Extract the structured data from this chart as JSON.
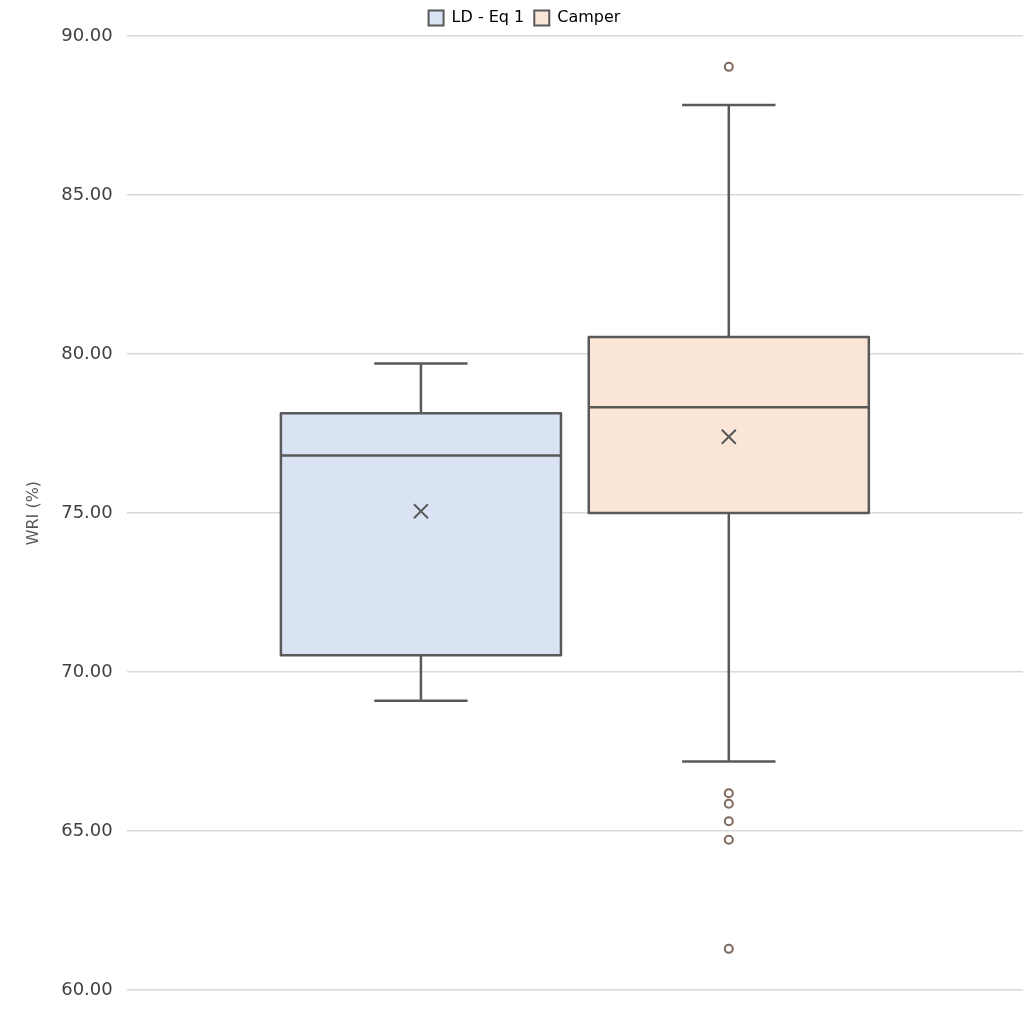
{
  "chart_data": {
    "type": "box",
    "ylabel": "WRI (%)",
    "categories": [
      null
    ],
    "series": [
      {
        "name": "LD - Eq 1",
        "color": "#dae3f3",
        "boxes": [
          {
            "low": 69.1,
            "q1": 70.53,
            "median": 76.81,
            "q3": 78.14,
            "high": 79.7,
            "mean": 75.06
          }
        ]
      },
      {
        "name": "Camper",
        "color": "#fbe5d6",
        "boxes": [
          {
            "low": 67.19,
            "q1": 75.0,
            "median": 78.33,
            "q3": 80.54,
            "high": 87.83,
            "mean": 77.4,
            "outliers": [
              89.03,
              66.19,
              65.86,
              65.31,
              64.73,
              61.3
            ]
          }
        ]
      }
    ],
    "ylim": [
      60,
      90
    ],
    "yticks": [
      {
        "value": 60,
        "label": "60.00"
      },
      {
        "value": 65,
        "label": "65.00"
      },
      {
        "value": 70,
        "label": "70.00"
      },
      {
        "value": 75,
        "label": "75.00"
      },
      {
        "value": 80,
        "label": "80.00"
      },
      {
        "value": 85,
        "label": "85.00"
      },
      {
        "value": 90,
        "label": "90.00"
      }
    ],
    "grid": "y",
    "legend": "top",
    "tick_labels": "y"
  }
}
